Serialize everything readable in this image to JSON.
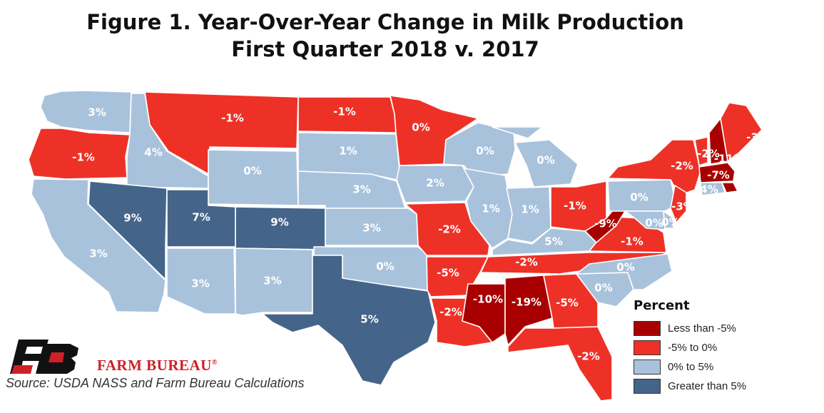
{
  "title_line1": "Figure 1. Year-Over-Year Change in Milk Production",
  "title_line2": "First Quarter 2018 v. 2017",
  "colors": {
    "lt_neg5": "#a80000",
    "neg5_to_0": "#ee3127",
    "0_to_5": "#a9c2dc",
    "gt5": "#44648a"
  },
  "legend": {
    "title": "Percent",
    "items": [
      {
        "key": "lt_neg5",
        "label": "Less than -5%"
      },
      {
        "key": "neg5_to_0",
        "label": "-5% to 0%"
      },
      {
        "key": "0_to_5",
        "label": "0% to 5%"
      },
      {
        "key": "gt5",
        "label": "Greater than 5%"
      }
    ]
  },
  "states": [
    {
      "name": "WA",
      "value": "3%",
      "cat": "0_to_5"
    },
    {
      "name": "OR",
      "value": "-1%",
      "cat": "neg5_to_0"
    },
    {
      "name": "CA",
      "value": "3%",
      "cat": "0_to_5"
    },
    {
      "name": "ID",
      "value": "4%",
      "cat": "0_to_5"
    },
    {
      "name": "NV",
      "value": "9%",
      "cat": "gt5"
    },
    {
      "name": "MT",
      "value": "-1%",
      "cat": "neg5_to_0"
    },
    {
      "name": "WY",
      "value": "0%",
      "cat": "0_to_5"
    },
    {
      "name": "UT",
      "value": "7%",
      "cat": "gt5"
    },
    {
      "name": "CO",
      "value": "9%",
      "cat": "gt5"
    },
    {
      "name": "AZ",
      "value": "3%",
      "cat": "0_to_5"
    },
    {
      "name": "NM",
      "value": "3%",
      "cat": "0_to_5"
    },
    {
      "name": "ND",
      "value": "-1%",
      "cat": "neg5_to_0"
    },
    {
      "name": "SD",
      "value": "1%",
      "cat": "0_to_5"
    },
    {
      "name": "NE",
      "value": "3%",
      "cat": "0_to_5"
    },
    {
      "name": "KS",
      "value": "3%",
      "cat": "0_to_5"
    },
    {
      "name": "OK",
      "value": "0%",
      "cat": "0_to_5"
    },
    {
      "name": "TX",
      "value": "5%",
      "cat": "gt5"
    },
    {
      "name": "MN",
      "value": "0%",
      "cat": "neg5_to_0"
    },
    {
      "name": "IA",
      "value": "2%",
      "cat": "0_to_5"
    },
    {
      "name": "MO",
      "value": "-2%",
      "cat": "neg5_to_0"
    },
    {
      "name": "AR",
      "value": "-5%",
      "cat": "neg5_to_0"
    },
    {
      "name": "LA",
      "value": "-2%",
      "cat": "neg5_to_0"
    },
    {
      "name": "WI",
      "value": "0%",
      "cat": "0_to_5"
    },
    {
      "name": "IL",
      "value": "1%",
      "cat": "0_to_5"
    },
    {
      "name": "MI",
      "value": "0%",
      "cat": "0_to_5"
    },
    {
      "name": "IN",
      "value": "1%",
      "cat": "0_to_5"
    },
    {
      "name": "KY",
      "value": "5%",
      "cat": "0_to_5"
    },
    {
      "name": "TN",
      "value": "-2%",
      "cat": "neg5_to_0"
    },
    {
      "name": "MS",
      "value": "-10%",
      "cat": "lt_neg5"
    },
    {
      "name": "AL",
      "value": "-19%",
      "cat": "lt_neg5"
    },
    {
      "name": "GA",
      "value": "-5%",
      "cat": "neg5_to_0"
    },
    {
      "name": "FL",
      "value": "-2%",
      "cat": "neg5_to_0"
    },
    {
      "name": "SC",
      "value": "0%",
      "cat": "0_to_5"
    },
    {
      "name": "NC",
      "value": "0%",
      "cat": "0_to_5"
    },
    {
      "name": "VA",
      "value": "-1%",
      "cat": "neg5_to_0"
    },
    {
      "name": "WV",
      "value": "-9%",
      "cat": "lt_neg5"
    },
    {
      "name": "OH",
      "value": "-1%",
      "cat": "neg5_to_0"
    },
    {
      "name": "PA",
      "value": "0%",
      "cat": "0_to_5"
    },
    {
      "name": "NY",
      "value": "-2%",
      "cat": "neg5_to_0"
    },
    {
      "name": "VT",
      "value": "-2%",
      "cat": "neg5_to_0"
    },
    {
      "name": "NH",
      "value": "-11%",
      "cat": "lt_neg5"
    },
    {
      "name": "ME",
      "value": "-3%",
      "cat": "neg5_to_0"
    },
    {
      "name": "MA",
      "value": "-7%",
      "cat": "lt_neg5"
    },
    {
      "name": "CT",
      "value": "4%",
      "cat": "0_to_5"
    },
    {
      "name": "RI",
      "value": "",
      "cat": "lt_neg5"
    },
    {
      "name": "NJ",
      "value": "-3%",
      "cat": "neg5_to_0"
    },
    {
      "name": "DE",
      "value": "0%",
      "cat": "0_to_5"
    },
    {
      "name": "MD",
      "value": "0%",
      "cat": "0_to_5"
    }
  ],
  "brand": "FARM BUREAU",
  "brand_mark": "®",
  "source": "Source: USDA NASS and Farm Bureau Calculations"
}
